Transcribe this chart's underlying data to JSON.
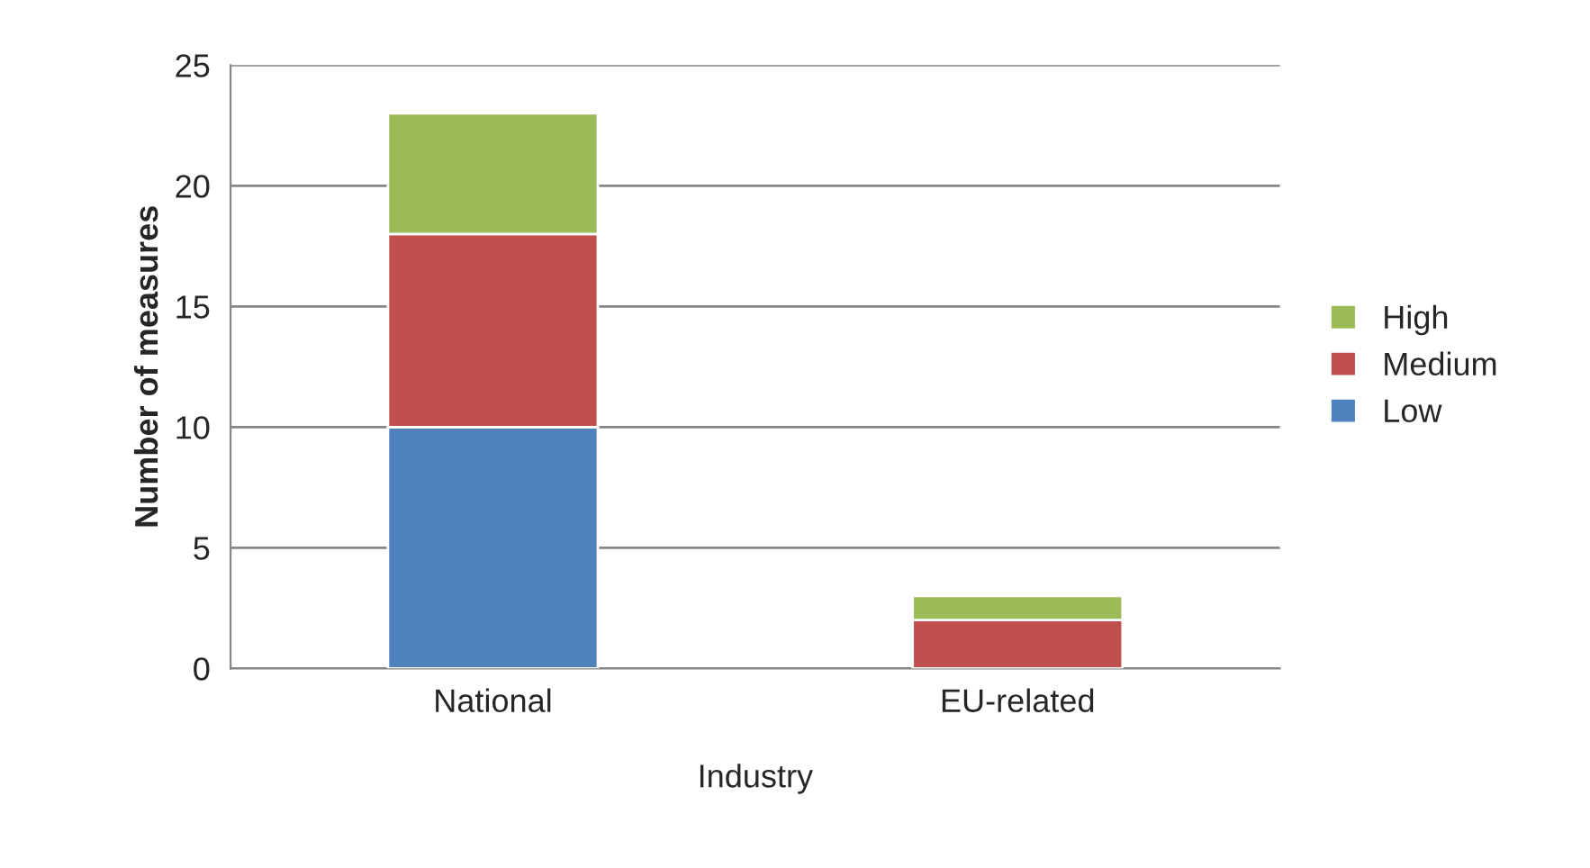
{
  "chart_data": {
    "type": "bar",
    "stacked": true,
    "ylabel": "Number of measures",
    "xlabel": "Industry",
    "categories": [
      "National",
      "EU-related"
    ],
    "series": [
      {
        "name": "Low",
        "color": "#4f81bd",
        "values": [
          10,
          0
        ]
      },
      {
        "name": "Medium",
        "color": "#c0504d",
        "values": [
          8,
          2
        ]
      },
      {
        "name": "High",
        "color": "#9bbb59",
        "values": [
          5,
          1
        ]
      }
    ],
    "ylim": [
      0,
      25
    ],
    "yticks": [
      0,
      5,
      10,
      15,
      20,
      25
    ],
    "grid": "y",
    "legend": "right"
  }
}
